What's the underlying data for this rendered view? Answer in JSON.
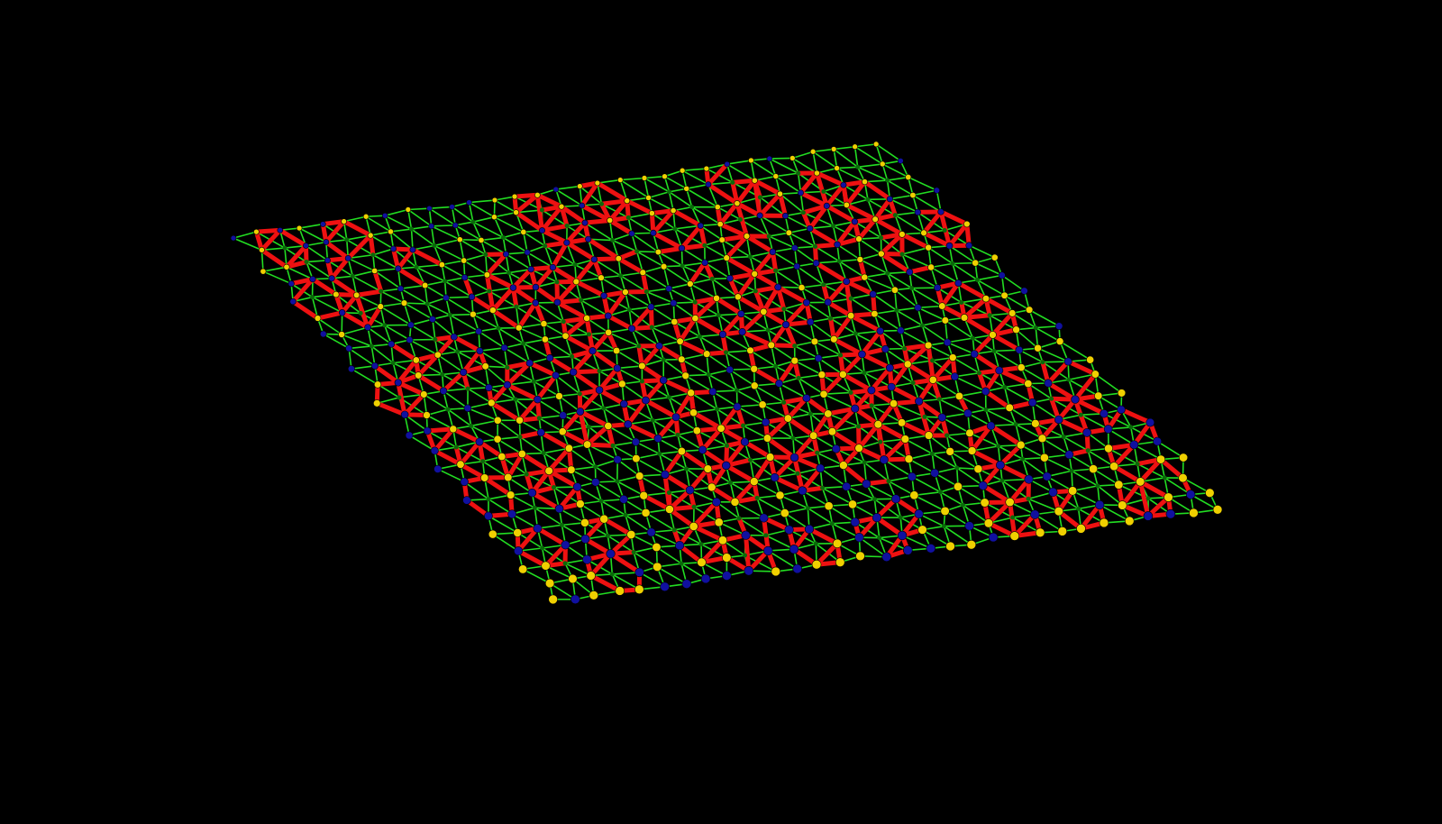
{
  "scene": {
    "background": "#000000",
    "colors": {
      "bond": "#22dd22",
      "highlight_bond": "#ee1111",
      "node_a": "#1010a0",
      "node_b": "#f0d000",
      "hub": "#0a6a0a"
    }
  }
}
